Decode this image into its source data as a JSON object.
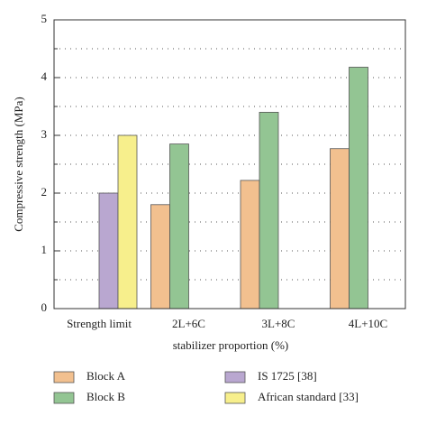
{
  "chart_data": {
    "type": "bar",
    "xlabel": "stabilizer proportion (%)",
    "ylabel": "Compressive strength (MPa)",
    "categories": [
      "Strength limit",
      "2L+6C",
      "3L+8C",
      "4L+10C"
    ],
    "series": [
      {
        "name": "Block A",
        "color": "#f2c08f",
        "values": [
          null,
          1.8,
          2.22,
          2.77
        ]
      },
      {
        "name": "Block B",
        "color": "#93c593",
        "values": [
          null,
          2.85,
          3.4,
          4.18
        ]
      },
      {
        "name": "IS 1725 [38]",
        "color": "#b9a7d0",
        "values": [
          2.0,
          null,
          null,
          null
        ]
      },
      {
        "name": "African standard [33]",
        "color": "#f7ef8c",
        "values": [
          3.0,
          null,
          null,
          null
        ]
      }
    ],
    "ylim": [
      0,
      5
    ],
    "yticks": [
      0,
      1,
      2,
      3,
      4,
      5
    ],
    "yminor": [
      0.5,
      1.5,
      2.5,
      3.5,
      4.5
    ],
    "grid": true,
    "legend": "bottom"
  }
}
